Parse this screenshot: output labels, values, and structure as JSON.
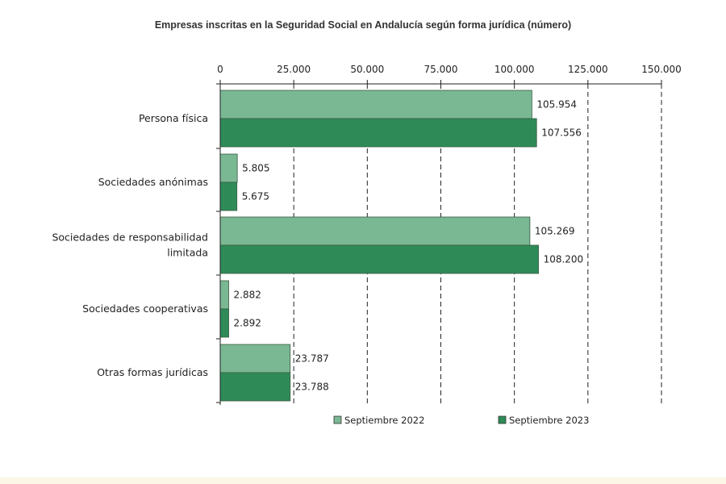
{
  "chart_data": {
    "type": "bar",
    "orientation": "horizontal",
    "title": "Empresas inscritas en la Seguridad Social en Andalucía según forma jurídica (número)",
    "categories": [
      [
        "Persona física"
      ],
      [
        "Sociedades anónimas"
      ],
      [
        "Sociedades de responsabilidad",
        "limitada"
      ],
      [
        "Sociedades cooperativas"
      ],
      [
        "Otras formas jurídicas"
      ]
    ],
    "series": [
      {
        "name": "Septiembre 2022",
        "color": "#7ab893",
        "values": [
          105954,
          5805,
          105269,
          2882,
          23787
        ],
        "labels": [
          "105.954",
          "5.805",
          "105.269",
          "2.882",
          "23.787"
        ]
      },
      {
        "name": "Septiembre 2023",
        "color": "#2e8b57",
        "values": [
          107556,
          5675,
          108200,
          2892,
          23788
        ],
        "labels": [
          "107.556",
          "5.675",
          "108.200",
          "2.892",
          "23.788"
        ]
      }
    ],
    "xlim": [
      0,
      150000
    ],
    "x_ticks": [
      0,
      25000,
      50000,
      75000,
      100000,
      125000,
      150000
    ],
    "x_tick_labels": [
      "0",
      "25.000",
      "50.000",
      "75.000",
      "100.000",
      "125.000",
      "150.000"
    ],
    "axis_position": "top",
    "grid": "vertical dashed",
    "legend_position": "bottom"
  }
}
